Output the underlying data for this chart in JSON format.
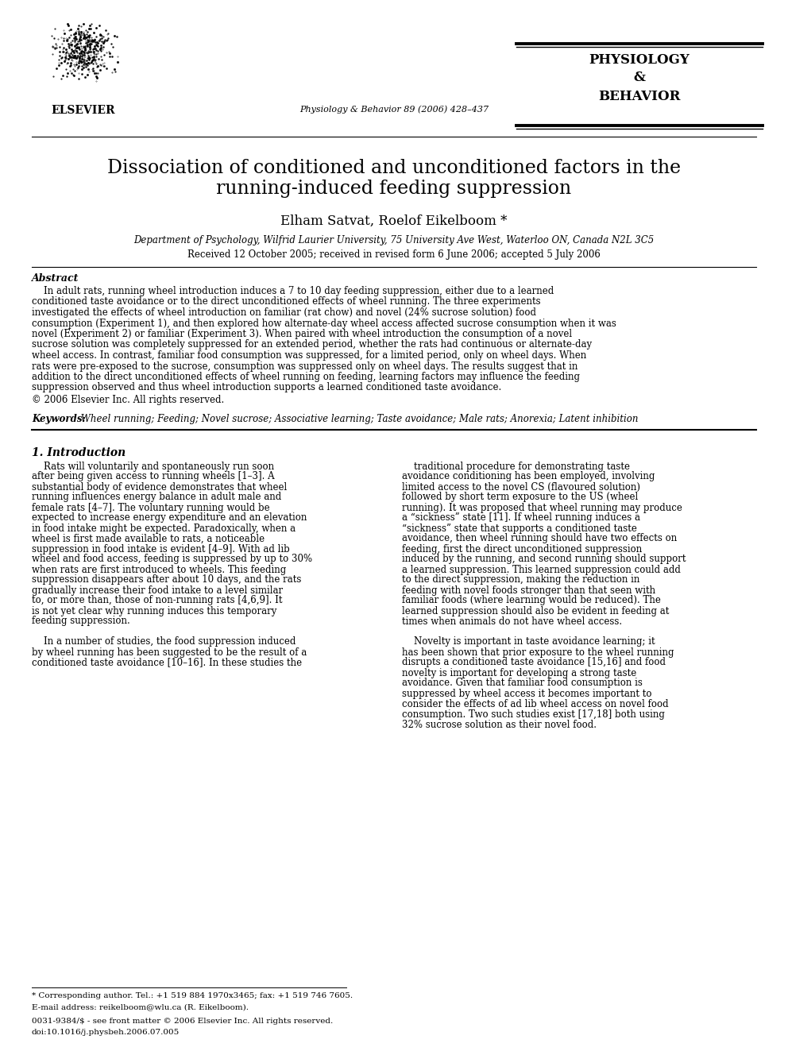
{
  "title_line1": "Dissociation of conditioned and unconditioned factors in the",
  "title_line2": "running-induced feeding suppression",
  "authors": "Elham Satvat, Roelof Eikelboom *",
  "affiliation": "Department of Psychology, Wilfrid Laurier University, 75 University Ave West, Waterloo ON, Canada N2L 3C5",
  "received": "Received 12 October 2005; received in revised form 6 June 2006; accepted 5 July 2006",
  "journal_name": "Physiology & Behavior 89 (2006) 428–437",
  "journal_title_line1": "PHYSIOLOGY",
  "journal_title_amp": "&",
  "journal_title_line3": "BEHAVIOR",
  "elsevier_text": "ELSEVIER",
  "abstract_title": "Abstract",
  "abstract_text": "    In adult rats, running wheel introduction induces a 7 to 10 day feeding suppression, either due to a learned conditioned taste avoidance or to the direct unconditioned effects of wheel running. The three experiments investigated the effects of wheel introduction on familiar (rat chow) and novel (24% sucrose solution) food consumption (Experiment 1), and then explored how alternate-day wheel access affected sucrose consumption when it was novel (Experiment 2) or familiar (Experiment 3). When paired with wheel introduction the consumption of a novel sucrose solution was completely suppressed for an extended period, whether the rats had continuous or alternate-day wheel access. In contrast, familiar food consumption was suppressed, for a limited period, only on wheel days. When rats were pre-exposed to the sucrose, consumption was suppressed only on wheel days. The results suggest that in addition to the direct unconditioned effects of wheel running on feeding, learning factors may influence the feeding suppression observed and thus wheel introduction supports a learned conditioned taste avoidance.",
  "abstract_copyright": "© 2006 Elsevier Inc. All rights reserved.",
  "keywords_label": "Keywords:",
  "keywords_text": " Wheel running; Feeding; Novel sucrose; Associative learning; Taste avoidance; Male rats; Anorexia; Latent inhibition",
  "section1_title": "1. Introduction",
  "intro_col1_para1": "    Rats will voluntarily and spontaneously run soon after being given access to running wheels [1–3]. A substantial body of evidence demonstrates that wheel running influences energy balance in adult male and female rats [4–7]. The voluntary running would be expected to increase energy expenditure and an elevation in food intake might be expected. Paradoxically, when a wheel is first made available to rats, a noticeable suppression in food intake is evident [4–9]. With ad lib wheel and food access, feeding is suppressed by up to 30% when rats are first introduced to wheels. This feeding suppression disappears after about 10 days, and the rats gradually increase their food intake to a level similar to, or more than, those of non-running rats [4,6,9]. It is not yet clear why running induces this temporary feeding suppression.",
  "intro_col1_para2": "    In a number of studies, the food suppression induced by wheel running has been suggested to be the result of a conditioned taste avoidance [10–16]. In these studies the",
  "intro_col2_para1": "traditional procedure for demonstrating taste avoidance conditioning has been employed, involving limited access to the novel CS (flavoured solution) followed by short term exposure to the US (wheel running). It was proposed that wheel running may produce a “sickness” state [11]. If wheel running induces a “sickness” state that supports a conditioned taste avoidance, then wheel running should have two effects on feeding, first the direct unconditioned suppression induced by the running, and second running should support a learned suppression. This learned suppression could add to the direct suppression, making the reduction in feeding with novel foods stronger than that seen with familiar foods (where learning would be reduced). The learned suppression should also be evident in feeding at times when animals do not have wheel access.",
  "intro_col2_para2": "    Novelty is important in taste avoidance learning; it has been shown that prior exposure to the wheel running disrupts a conditioned taste avoidance [15,16] and food novelty is important for developing a strong taste avoidance. Given that familiar food consumption is suppressed by wheel access it becomes important to consider the effects of ad lib wheel access on novel food consumption. Two such studies exist [17,18] both using 32% sucrose solution as their novel food.",
  "footnote1": "* Corresponding author. Tel.: +1 519 884 1970x3465; fax: +1 519 746 7605.",
  "footnote2": "E-mail address: reikelboom@wlu.ca (R. Eikelboom).",
  "footnote3": "0031-9384/$ - see front matter © 2006 Elsevier Inc. All rights reserved.",
  "footnote4": "doi:10.1016/j.physbeh.2006.07.005",
  "background_color": "#ffffff"
}
